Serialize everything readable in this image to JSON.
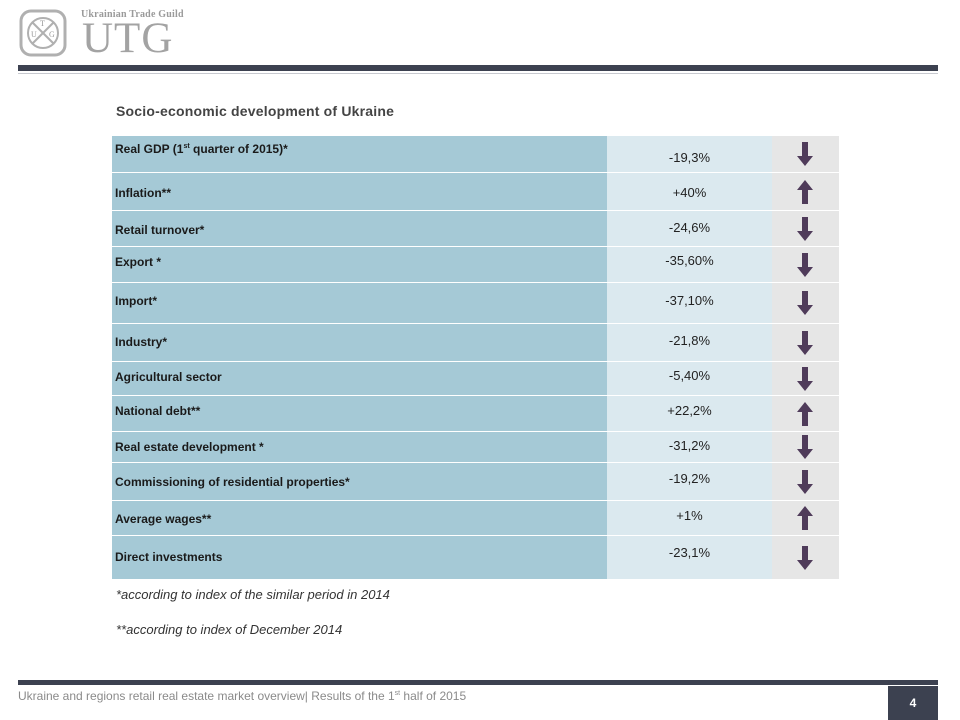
{
  "header": {
    "logo_small": "Ukrainian Trade Guild",
    "logo_big": "UTG",
    "emblem_letters": [
      "U",
      "T",
      "G"
    ]
  },
  "title": "Socio-economic  development  of Ukraine",
  "rows": [
    {
      "label": "Real GDP (1",
      "label_sup": "st",
      "label_after": " quarter of 2015)*",
      "value": "-19,3%",
      "trend": "down"
    },
    {
      "label": "Inflation**",
      "value": "+40%",
      "trend": "up"
    },
    {
      "label": "Retail turnover*",
      "value": "-24,6%",
      "trend": "down"
    },
    {
      "label": "Export *",
      "value": "-35,60%",
      "trend": "down"
    },
    {
      "label": "Import*",
      "value": "-37,10%",
      "trend": "down"
    },
    {
      "label": "Industry*",
      "value": "-21,8%",
      "trend": "down"
    },
    {
      "label": "Agricultural sector",
      "value": "-5,40%",
      "trend": "down"
    },
    {
      "label": "National debt**",
      "value": "+22,2%",
      "trend": "up"
    },
    {
      "label": "Real estate development *",
      "value": "-31,2%",
      "trend": "down"
    },
    {
      "label": "Commissioning of residential properties*",
      "value": "-19,2%",
      "trend": "down"
    },
    {
      "label": "Average wages**",
      "value": "+1%",
      "trend": "up"
    },
    {
      "label": "Direct investments",
      "value": "-23,1%",
      "trend": "down"
    }
  ],
  "notes": [
    "*according to index of the similar period in 2014",
    "**according to index of December 2014"
  ],
  "footer": {
    "text_before": "Ukraine and regions retail real estate market overview| Results of the 1",
    "text_sup": "st",
    "text_after": " half of 2015",
    "page_number": "4"
  },
  "colors": {
    "label_cell": "#a5c9d6",
    "value_cell": "#dbe9ef",
    "arrow_cell": "#e6e6e6",
    "arrow": "#4f3b5a",
    "rule": "#3c4150"
  }
}
